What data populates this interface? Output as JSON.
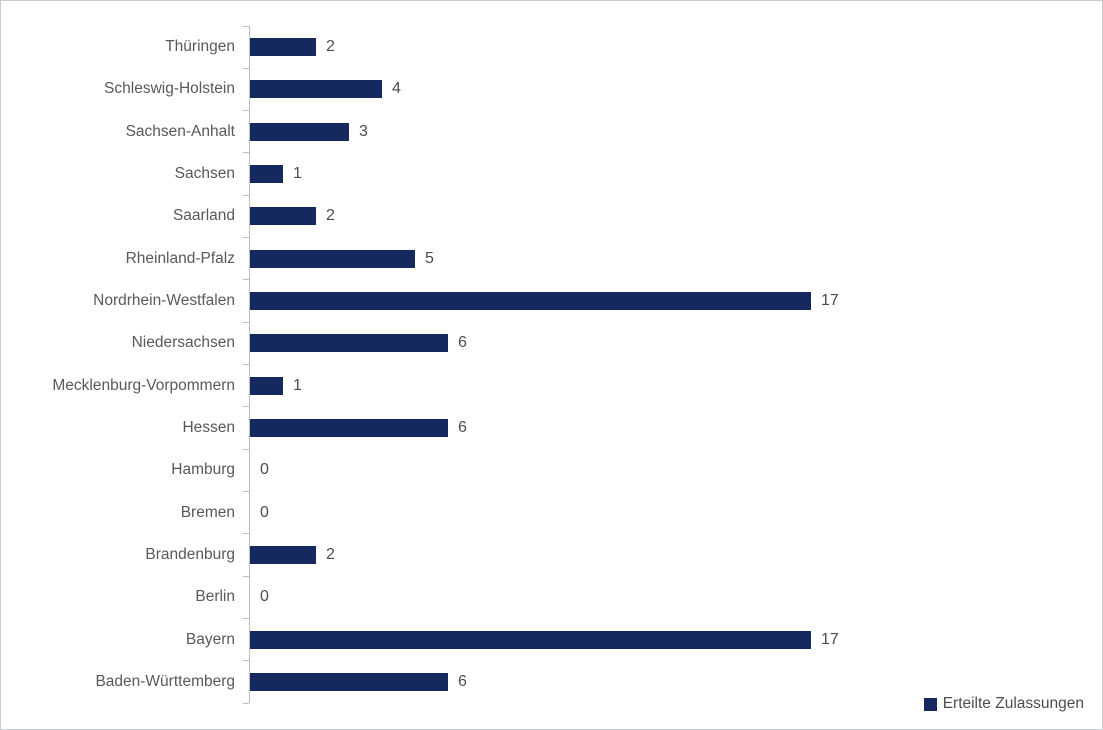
{
  "chart_data": {
    "type": "bar",
    "orientation": "horizontal",
    "title": "",
    "xlabel": "",
    "ylabel": "",
    "grid": false,
    "xlim": [
      0,
      17.5
    ],
    "legend_position": "bottom-right",
    "series_name": "Erteilte Zulassungen",
    "categories": [
      "Thüringen",
      "Schleswig-Holstein",
      "Sachsen-Anhalt",
      "Sachsen",
      "Saarland",
      "Rheinland-Pfalz",
      "Nordrhein-Westfalen",
      "Niedersachsen",
      "Mecklenburg-Vorpommern",
      "Hessen",
      "Hamburg",
      "Bremen",
      "Brandenburg",
      "Berlin",
      "Bayern",
      "Baden-Württemberg"
    ],
    "values": [
      2,
      4,
      3,
      1,
      2,
      5,
      17,
      6,
      1,
      6,
      0,
      0,
      2,
      0,
      17,
      6
    ],
    "data_labels_shown": true,
    "colors": {
      "bar": "#15295e",
      "axis": "#bfbfbf",
      "category_label": "#595959",
      "value_label": "#4d4d4d"
    }
  },
  "legend": {
    "label": "Erteilte Zulassungen",
    "swatch_icon": "filled-square-icon",
    "swatch_color": "#15295e"
  }
}
